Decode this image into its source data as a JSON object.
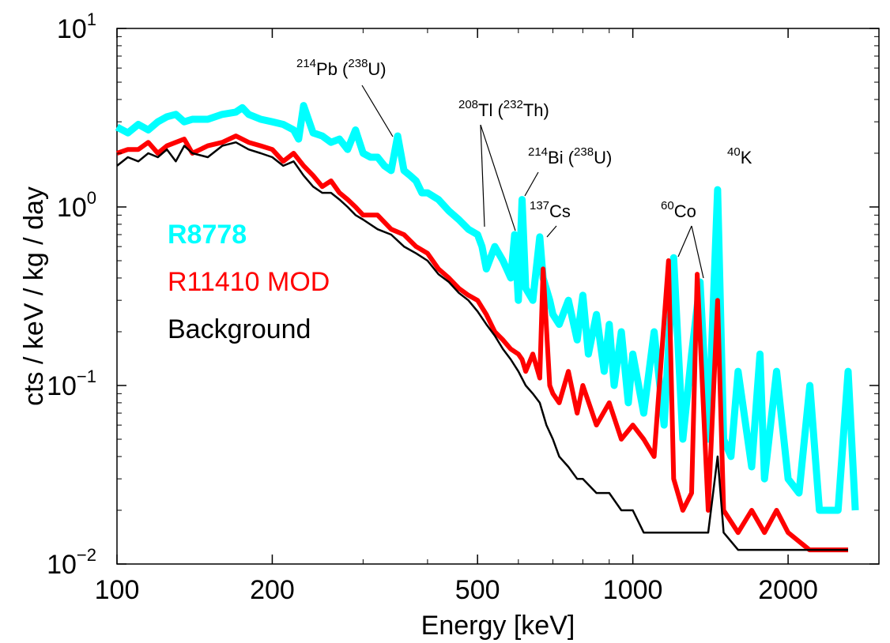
{
  "chart_data": {
    "type": "line",
    "title": "",
    "xlabel": "Energy [keV]",
    "ylabel": "cts / keV / kg / day",
    "xscale": "log",
    "yscale": "log",
    "xlim": [
      100,
      3000
    ],
    "ylim": [
      0.01,
      10
    ],
    "grid": false,
    "legend_placement": "left",
    "x_ticks": [
      {
        "value": 100,
        "label": "100"
      },
      {
        "value": 200,
        "label": "200"
      },
      {
        "value": 500,
        "label": "500"
      },
      {
        "value": 1000,
        "label": "1000"
      },
      {
        "value": 2000,
        "label": "2000"
      }
    ],
    "y_ticks": [
      {
        "value": 10,
        "base": "10",
        "exp": "1"
      },
      {
        "value": 1,
        "base": "10",
        "exp": "0"
      },
      {
        "value": 0.1,
        "base": "10",
        "exp": "−1"
      },
      {
        "value": 0.01,
        "base": "10",
        "exp": "−2"
      }
    ],
    "series": [
      {
        "name": "R8778",
        "color": "#00ffff",
        "x": [
          100,
          105,
          110,
          115,
          120,
          125,
          130,
          135,
          140,
          150,
          160,
          170,
          175,
          180,
          190,
          200,
          210,
          220,
          225,
          230,
          240,
          250,
          260,
          270,
          280,
          290,
          300,
          310,
          320,
          330,
          340,
          350,
          360,
          370,
          380,
          390,
          400,
          420,
          440,
          460,
          480,
          500,
          510,
          520,
          540,
          560,
          580,
          590,
          600,
          610,
          620,
          640,
          660,
          670,
          690,
          700,
          720,
          750,
          780,
          800,
          820,
          850,
          880,
          900,
          920,
          950,
          980,
          1000,
          1050,
          1100,
          1150,
          1200,
          1250,
          1300,
          1350,
          1400,
          1460,
          1500,
          1550,
          1600,
          1700,
          1764,
          1800,
          1900,
          2000,
          2100,
          2204,
          2300,
          2400,
          2500,
          2614,
          2700
        ],
        "y": [
          2.8,
          2.6,
          2.9,
          2.7,
          3.0,
          3.2,
          3.3,
          3.0,
          3.1,
          3.1,
          3.3,
          3.4,
          3.6,
          3.3,
          3.1,
          3.0,
          2.9,
          2.7,
          2.4,
          3.7,
          2.6,
          2.5,
          2.3,
          2.4,
          2.1,
          2.7,
          2.0,
          1.9,
          1.9,
          1.7,
          1.6,
          2.5,
          1.6,
          1.5,
          1.4,
          1.2,
          1.2,
          1.1,
          0.95,
          0.85,
          0.75,
          0.7,
          0.6,
          0.45,
          0.6,
          0.5,
          0.4,
          0.7,
          0.3,
          1.1,
          0.35,
          0.3,
          0.68,
          0.4,
          0.3,
          0.25,
          0.22,
          0.3,
          0.18,
          0.32,
          0.15,
          0.25,
          0.12,
          0.22,
          0.1,
          0.2,
          0.08,
          0.15,
          0.07,
          0.2,
          0.06,
          0.52,
          0.05,
          0.15,
          0.38,
          0.05,
          1.25,
          0.05,
          0.04,
          0.12,
          0.035,
          0.15,
          0.03,
          0.12,
          0.03,
          0.025,
          0.1,
          0.02,
          0.02,
          0.02,
          0.12,
          0.02
        ]
      },
      {
        "name": "R11410 MOD",
        "color": "#ff0000",
        "x": [
          100,
          105,
          110,
          115,
          120,
          125,
          130,
          135,
          140,
          150,
          160,
          170,
          180,
          190,
          200,
          210,
          220,
          230,
          240,
          250,
          260,
          270,
          280,
          290,
          300,
          320,
          340,
          360,
          380,
          400,
          420,
          440,
          460,
          480,
          500,
          520,
          540,
          560,
          580,
          600,
          610,
          620,
          640,
          660,
          670,
          690,
          700,
          720,
          750,
          780,
          800,
          850,
          900,
          950,
          1000,
          1050,
          1100,
          1173,
          1200,
          1250,
          1300,
          1333,
          1400,
          1460,
          1500,
          1600,
          1700,
          1800,
          1900,
          2000,
          2200,
          2400,
          2614
        ],
        "y": [
          2.0,
          2.1,
          2.1,
          2.3,
          2.0,
          2.2,
          2.3,
          2.4,
          2.0,
          2.2,
          2.3,
          2.5,
          2.3,
          2.2,
          2.1,
          1.8,
          2.0,
          1.7,
          1.5,
          1.3,
          1.4,
          1.2,
          1.1,
          1.0,
          0.9,
          0.9,
          0.75,
          0.7,
          0.6,
          0.55,
          0.45,
          0.4,
          0.35,
          0.32,
          0.3,
          0.25,
          0.2,
          0.18,
          0.16,
          0.15,
          0.14,
          0.12,
          0.15,
          0.11,
          0.45,
          0.1,
          0.09,
          0.08,
          0.12,
          0.07,
          0.1,
          0.06,
          0.08,
          0.05,
          0.06,
          0.05,
          0.04,
          0.5,
          0.03,
          0.02,
          0.025,
          0.42,
          0.02,
          0.3,
          0.02,
          0.015,
          0.02,
          0.015,
          0.02,
          0.015,
          0.012,
          0.012,
          0.012
        ]
      },
      {
        "name": "Background",
        "color": "#000000",
        "x": [
          100,
          105,
          110,
          115,
          120,
          125,
          130,
          135,
          140,
          150,
          160,
          170,
          180,
          190,
          200,
          210,
          220,
          230,
          240,
          250,
          260,
          270,
          280,
          290,
          300,
          320,
          340,
          360,
          380,
          400,
          420,
          440,
          460,
          480,
          500,
          520,
          540,
          560,
          580,
          600,
          620,
          640,
          660,
          680,
          700,
          720,
          750,
          780,
          800,
          850,
          900,
          950,
          1000,
          1050,
          1100,
          1200,
          1300,
          1400,
          1460,
          1500,
          1600,
          1700,
          1800,
          2000,
          2200,
          2400,
          2614
        ],
        "y": [
          1.7,
          1.9,
          1.8,
          2.0,
          1.9,
          2.1,
          1.8,
          2.2,
          2.0,
          1.9,
          2.2,
          2.3,
          2.1,
          2.0,
          1.9,
          1.7,
          1.8,
          1.5,
          1.3,
          1.2,
          1.2,
          1.1,
          1.0,
          0.9,
          0.85,
          0.75,
          0.7,
          0.6,
          0.55,
          0.5,
          0.42,
          0.38,
          0.33,
          0.3,
          0.26,
          0.22,
          0.19,
          0.16,
          0.14,
          0.12,
          0.1,
          0.09,
          0.08,
          0.06,
          0.05,
          0.04,
          0.035,
          0.03,
          0.03,
          0.025,
          0.025,
          0.02,
          0.02,
          0.015,
          0.015,
          0.015,
          0.015,
          0.015,
          0.04,
          0.015,
          0.012,
          0.012,
          0.012,
          0.012,
          0.012,
          0.012,
          0.012
        ]
      }
    ],
    "annotations": [
      {
        "mass": "214",
        "element": "Pb (",
        "mass2": "238",
        "element2": "U)",
        "energy": 352
      },
      {
        "mass": "208",
        "element": "Tl (",
        "mass2": "232",
        "element2": "Th)",
        "energy": 583
      },
      {
        "mass": "214",
        "element": "Bi (",
        "mass2": "238",
        "element2": "U)",
        "energy": 609
      },
      {
        "mass": "137",
        "element": "Cs",
        "mass2": "",
        "element2": "",
        "energy": 662
      },
      {
        "mass": "60",
        "element": "Co",
        "mass2": "",
        "element2": "",
        "energy": 1173
      },
      {
        "mass": "40",
        "element": "K",
        "mass2": "",
        "element2": "",
        "energy": 1460
      }
    ]
  }
}
